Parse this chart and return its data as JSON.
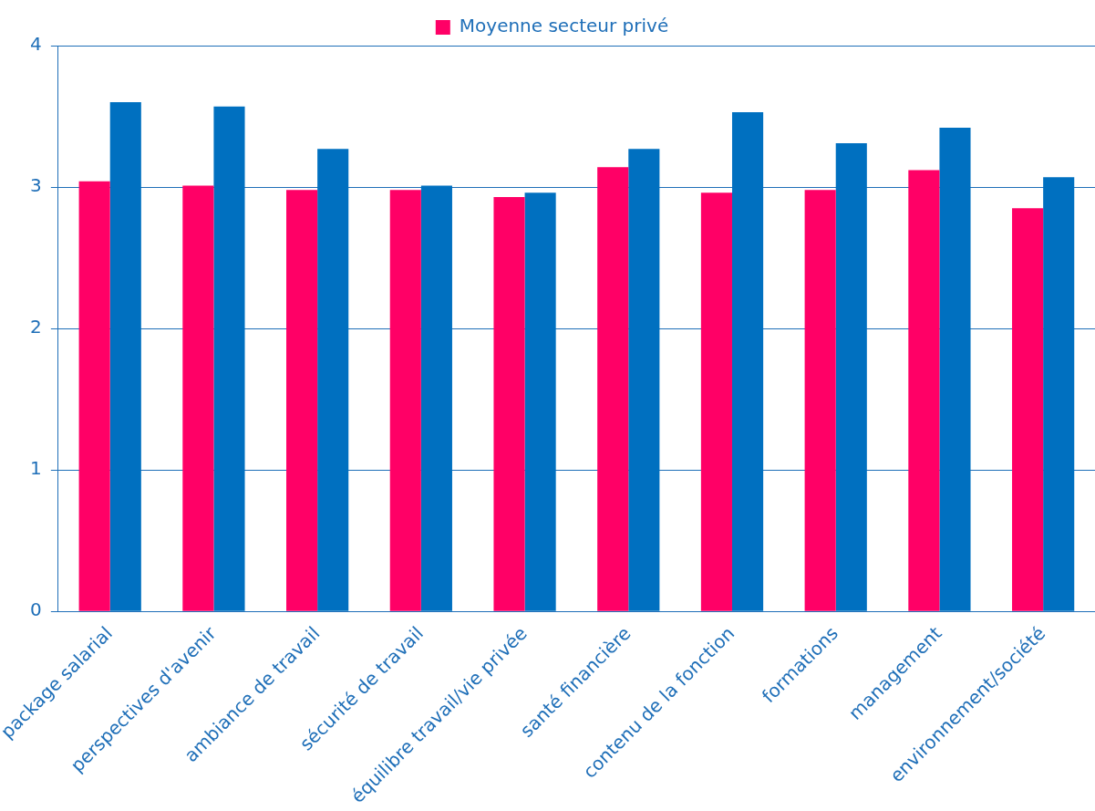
{
  "chart_data": {
    "type": "bar",
    "categories": [
      "package salarial",
      "perspectives d'avenir",
      "ambiance de travail",
      "sécurité de travail",
      "équilibre travail/vie privée",
      "santé financière",
      "contenu de la fonction",
      "formations",
      "management",
      "environnement/société"
    ],
    "series": [
      {
        "name": "Moyenne secteur privé",
        "color": "#ff0066",
        "values": [
          3.04,
          3.01,
          2.98,
          2.98,
          2.93,
          3.14,
          2.96,
          2.98,
          3.12,
          2.85
        ]
      },
      {
        "color": "#0070c0",
        "values": [
          3.6,
          3.57,
          3.27,
          3.01,
          2.96,
          3.27,
          3.53,
          3.31,
          3.42,
          3.07
        ]
      }
    ],
    "ylim": [
      0,
      4
    ],
    "yticks": [
      0,
      1,
      2,
      3,
      4
    ],
    "grid": "y",
    "legend": "top"
  }
}
